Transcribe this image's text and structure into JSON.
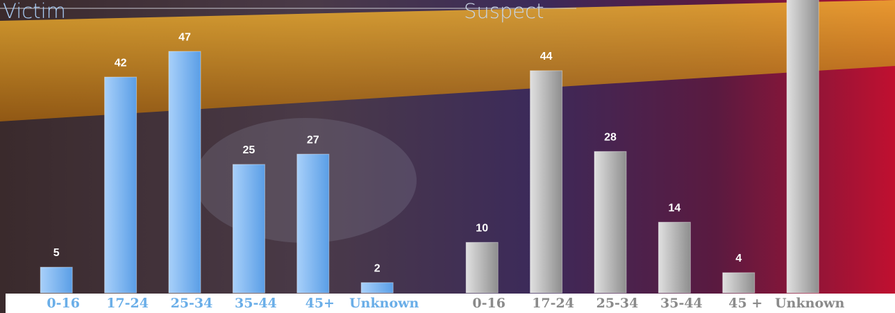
{
  "chart_data": [
    {
      "type": "bar",
      "title": "Victim",
      "categories": [
        "0-16",
        "17-24",
        "25-34",
        "35-44",
        "45+",
        "Unknown"
      ],
      "values": [
        5,
        42,
        47,
        25,
        27,
        2
      ],
      "color": "#6aaaf0",
      "ylim": [
        0,
        57
      ]
    },
    {
      "type": "bar",
      "title": "Suspect",
      "categories": [
        "0-16",
        "17-24",
        "25-34",
        "35-44",
        "45 +",
        "Unknown"
      ],
      "values": [
        10,
        44,
        28,
        14,
        4,
        60
      ],
      "color": "#a8a8a8",
      "ylim": [
        0,
        58
      ]
    }
  ]
}
